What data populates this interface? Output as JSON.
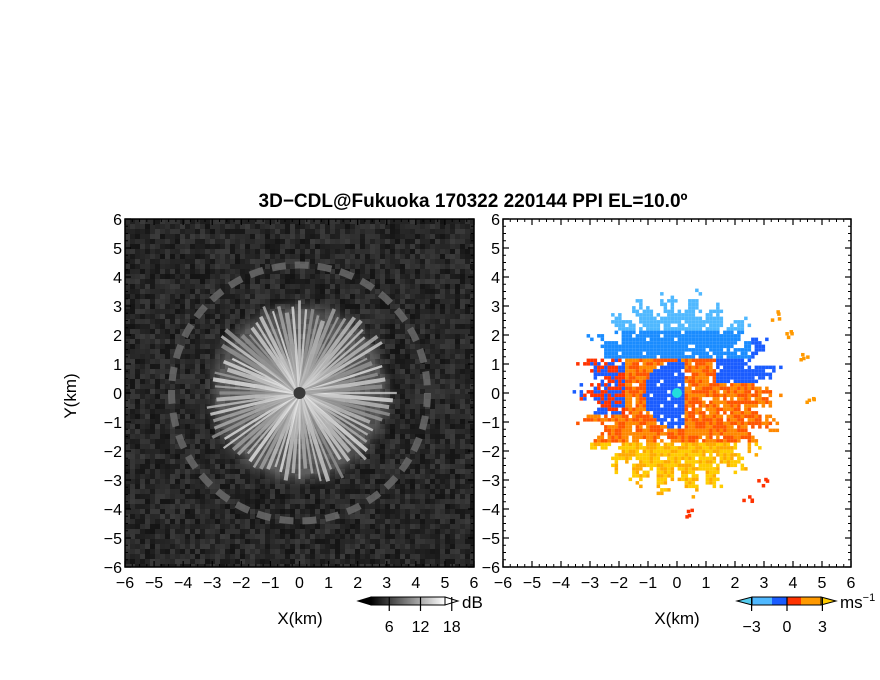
{
  "chart_data": {
    "title": "3D−CDL@Fukuoka 170322 220144 PPI EL=10.0º",
    "panels": [
      {
        "type": "heatmap",
        "quantity": "reflectivity",
        "xlabel": "X(km)",
        "ylabel": "Y(km)",
        "xlim": [
          -6,
          6
        ],
        "ylim": [
          -6,
          6
        ],
        "xticks": [
          "−6",
          "−5",
          "−4",
          "−3",
          "−2",
          "−1",
          "0",
          "1",
          "2",
          "3",
          "4",
          "5",
          "6"
        ],
        "yticks": [
          "−6",
          "−5",
          "−4",
          "−3",
          "−2",
          "−1",
          "0",
          "1",
          "2",
          "3",
          "4",
          "5",
          "6"
        ],
        "colorbar": {
          "unit": "dB",
          "ticks": [
            "6",
            "12",
            "18"
          ],
          "tick_values": [
            6,
            12,
            18
          ],
          "range": [
            0,
            24
          ],
          "colors": [
            "#000000",
            "#ffffff"
          ]
        },
        "echo_radius_km": 3.3,
        "ring_radius_km": 4.4
      },
      {
        "type": "heatmap",
        "quantity": "doppler velocity",
        "xlabel": "X(km)",
        "ylabel": "",
        "xlim": [
          -6,
          6
        ],
        "ylim": [
          -6,
          6
        ],
        "xticks": [
          "−6",
          "−5",
          "−4",
          "−3",
          "−2",
          "−1",
          "0",
          "1",
          "2",
          "3",
          "4",
          "5",
          "6"
        ],
        "yticks": [
          "−6",
          "−5",
          "−4",
          "−3",
          "−2",
          "−1",
          "0",
          "1",
          "2",
          "3",
          "4",
          "5",
          "6"
        ],
        "colorbar": {
          "unit": "ms",
          "unit_exp": "−1",
          "ticks": [
            "−3",
            "0",
            "3"
          ],
          "tick_values": [
            -3,
            0,
            3
          ],
          "range": [
            -5,
            5
          ],
          "colors": [
            "#55ccee",
            "#1a5cff",
            "#ff3300",
            "#ff9900",
            "#ffcc00"
          ]
        },
        "echo_radius_km": 3.6,
        "site_marker_color": "#22dddd"
      }
    ]
  }
}
